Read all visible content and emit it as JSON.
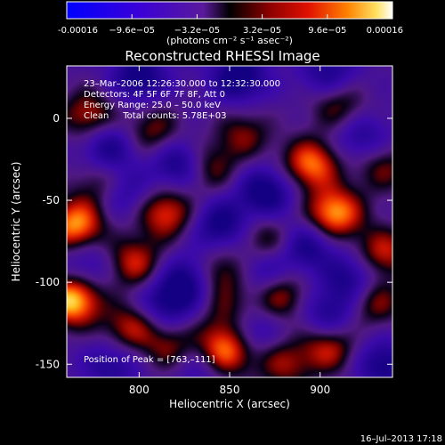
{
  "chart_data": {
    "type": "heatmap",
    "title": "Reconstructed RHESSI Image",
    "xlabel": "Heliocentric X (arcsec)",
    "ylabel": "Heliocentric Y (arcsec)",
    "xlim": [
      760,
      940
    ],
    "ylim": [
      -158,
      32
    ],
    "x_ticks": [
      {
        "v": 800,
        "label": "800"
      },
      {
        "v": 850,
        "label": "850"
      },
      {
        "v": 900,
        "label": "900"
      }
    ],
    "y_ticks": [
      {
        "v": 0,
        "label": "0"
      },
      {
        "v": -50,
        "label": "-50"
      },
      {
        "v": -100,
        "label": "-100"
      },
      {
        "v": -150,
        "label": "-150"
      }
    ],
    "colorbar": {
      "min": -0.00016,
      "max": 0.00016,
      "tick_values": [
        -0.00016,
        -9.6e-05,
        -3.2e-05,
        3.2e-05,
        9.6e-05,
        0.00016
      ],
      "tick_labels": [
        "-0.00016",
        "−9.6e−05",
        "−3.2e−05",
        "3.2e−05",
        "9.6e−05",
        "0.00016"
      ],
      "units_label": "(photons cm⁻² s⁻¹ asec⁻²)"
    },
    "annotations": [
      "23–Mar–2006 12:26:30.000 to 12:32:30.000",
      "Detectors: 4F 5F 6F 7F 8F, Att 0",
      "Energy Range: 25.0 – 50.0 keV",
      "Clean     Total counts: 5.78E+03"
    ],
    "peak_label": "Position of Peak = [763,–111]",
    "peak": {
      "x": 763,
      "y": -111
    },
    "sources": [
      {
        "x": 763,
        "y": -111,
        "value": 1.0
      },
      {
        "x": 765,
        "y": -65,
        "value": 0.85
      },
      {
        "x": 848,
        "y": -141,
        "value": 0.92
      },
      {
        "x": 908,
        "y": -58,
        "value": 0.88
      },
      {
        "x": 895,
        "y": -28,
        "value": 0.78
      },
      {
        "x": 815,
        "y": -58,
        "value": 0.66
      },
      {
        "x": 797,
        "y": -88,
        "value": 0.6
      },
      {
        "x": 772,
        "y": 2,
        "value": 0.55
      },
      {
        "x": 845,
        "y": -95,
        "value": 0.55
      },
      {
        "x": 935,
        "y": -82,
        "value": 0.58
      },
      {
        "x": 795,
        "y": -128,
        "value": 0.55
      },
      {
        "x": 905,
        "y": -140,
        "value": 0.58
      },
      {
        "x": 878,
        "y": -108,
        "value": 0.52
      },
      {
        "x": 838,
        "y": -30,
        "value": 0.5
      },
      {
        "x": 808,
        "y": -8,
        "value": 0.45
      },
      {
        "x": 858,
        "y": -10,
        "value": 0.42
      },
      {
        "x": 930,
        "y": -112,
        "value": 0.5
      },
      {
        "x": 818,
        "y": -140,
        "value": 0.45
      },
      {
        "x": 870,
        "y": -75,
        "value": 0.45
      },
      {
        "x": 910,
        "y": 8,
        "value": 0.45
      },
      {
        "x": 935,
        "y": -30,
        "value": 0.42
      },
      {
        "x": 780,
        "y": -40,
        "value": 0.45
      },
      {
        "x": 880,
        "y": -150,
        "value": 0.45
      },
      {
        "x": 850,
        "y": -120,
        "value": 0.38
      }
    ],
    "negatives": [
      {
        "x": 800,
        "y": 25,
        "value": -0.55
      },
      {
        "x": 855,
        "y": 25,
        "value": -0.6
      },
      {
        "x": 905,
        "y": 27,
        "value": -0.45
      },
      {
        "x": 783,
        "y": -18,
        "value": -0.5
      },
      {
        "x": 823,
        "y": -28,
        "value": -0.6
      },
      {
        "x": 870,
        "y": -45,
        "value": -0.6
      },
      {
        "x": 923,
        "y": -12,
        "value": -0.4
      },
      {
        "x": 790,
        "y": -45,
        "value": -0.45
      },
      {
        "x": 845,
        "y": -65,
        "value": -0.55
      },
      {
        "x": 893,
        "y": -78,
        "value": -0.5
      },
      {
        "x": 828,
        "y": -98,
        "value": -0.55
      },
      {
        "x": 868,
        "y": -93,
        "value": -0.45
      },
      {
        "x": 918,
        "y": -98,
        "value": -0.5
      },
      {
        "x": 785,
        "y": -150,
        "value": -0.4
      },
      {
        "x": 815,
        "y": -113,
        "value": -0.5
      },
      {
        "x": 860,
        "y": -130,
        "value": -0.5
      },
      {
        "x": 905,
        "y": -120,
        "value": -0.45
      },
      {
        "x": 935,
        "y": -150,
        "value": -0.5
      },
      {
        "x": 772,
        "y": -90,
        "value": -0.35
      },
      {
        "x": 833,
        "y": -150,
        "value": -0.35
      }
    ]
  },
  "footer": {
    "timestamp": "16–Jul–2013 17:18"
  }
}
